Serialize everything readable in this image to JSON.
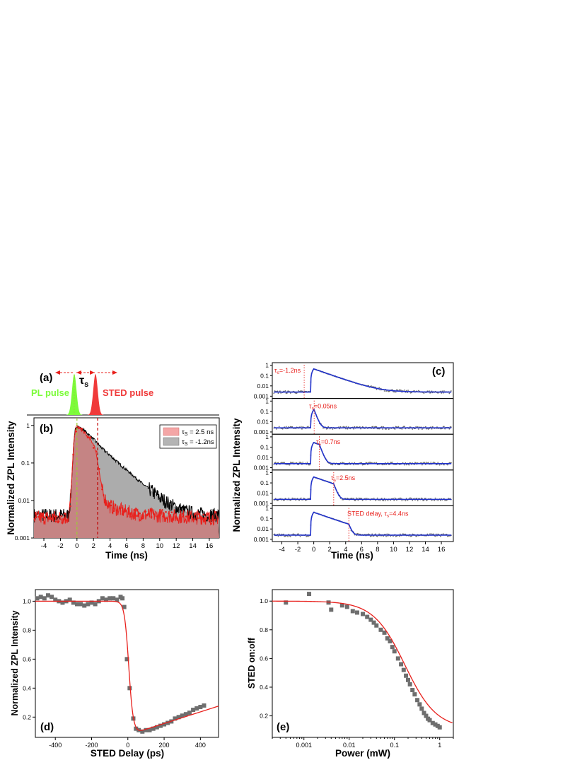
{
  "panel_labels": {
    "a": "(a)",
    "b": "(b)",
    "c": "(c)",
    "d": "(d)",
    "e": "(e)"
  },
  "pulse_diagram": {
    "pl_label": "PL pulse",
    "sted_label": "STED pulse",
    "tau_main": "τ",
    "tau_sub": "s",
    "pl_color": "#7CFC3A",
    "sted_color": "#F03A3A"
  },
  "axis_labels": {
    "b_y": "Normalized ZPL Intensity",
    "b_x": "Time (ns)",
    "c_y": "Normalized ZPL Intensity",
    "c_x": "Time (ns)",
    "d_y": "Normalized ZPL Intensity",
    "d_x": "STED Delay  (ps)",
    "e_y": "STED on:off",
    "e_x": "Power (mW)"
  },
  "legend_b": [
    {
      "main": "τ",
      "sub": "S",
      "rest": " = 2.5 ns",
      "color": "#F4A6A6"
    },
    {
      "main": "τ",
      "sub": "S",
      "rest": " = -1.2ns",
      "color": "#B4B4B4"
    }
  ],
  "c_annotations": [
    {
      "pre": "",
      "main": "τ",
      "sub": "s",
      "rest": "=-1.2ns"
    },
    {
      "pre": "",
      "main": "τ",
      "sub": "s",
      "rest": "=0.05ns"
    },
    {
      "pre": "",
      "main": "τ",
      "sub": "s",
      "rest": "=0.7ns"
    },
    {
      "pre": "",
      "main": "τ",
      "sub": "s",
      "rest": "=2.5ns"
    },
    {
      "pre": "STED delay,  ",
      "main": "τ",
      "sub": "s",
      "rest": "=4.4ns"
    }
  ],
  "colors": {
    "red": "#E8201C",
    "black": "#000000",
    "blue": "#2233CC",
    "grey_points": "#6E6E6E",
    "red_fill": "#C88080",
    "grey_fill": "#9E9E9E",
    "annotation_red": "#E8201C"
  },
  "chart_data": [
    {
      "id": "b",
      "type": "area",
      "title": "",
      "xlabel": "Time (ns)",
      "ylabel": "Normalized ZPL Intensity",
      "xlim": [
        -5.2,
        17.2
      ],
      "ylim": [
        0.001,
        1.6
      ],
      "yscale": "log",
      "xticks": [
        -4,
        -2,
        0,
        2,
        4,
        6,
        8,
        10,
        12,
        14,
        16
      ],
      "yticks": [
        0.001,
        0.01,
        0.1,
        1
      ],
      "ytick_labels": [
        "0.001",
        "0.01",
        "0.1",
        "1"
      ],
      "legend_position": "top-right",
      "vlines": [
        {
          "x": 0,
          "style": "dashed",
          "color": "#9acd32"
        },
        {
          "x": 2.5,
          "style": "dashed",
          "color": "#c00000"
        }
      ],
      "series": [
        {
          "name": "τS = -1.2ns",
          "x": [
            -5,
            -1,
            -0.8,
            -0.6,
            -0.4,
            -0.2,
            0,
            0.3,
            0.6,
            1,
            1.5,
            2,
            2.5,
            3,
            4,
            5,
            6,
            7,
            8,
            9,
            10,
            11,
            12,
            13,
            14,
            15,
            16,
            17
          ],
          "y": [
            0.004,
            0.004,
            0.01,
            0.05,
            0.3,
            0.8,
            0.95,
            0.88,
            0.8,
            0.7,
            0.55,
            0.43,
            0.33,
            0.25,
            0.16,
            0.1,
            0.065,
            0.042,
            0.027,
            0.018,
            0.012,
            0.0085,
            0.0065,
            0.0052,
            0.0046,
            0.0043,
            0.0041,
            0.004
          ]
        },
        {
          "name": "τS = 2.5 ns",
          "x": [
            -5,
            -1,
            -0.8,
            -0.6,
            -0.4,
            -0.2,
            0,
            0.3,
            0.6,
            1,
            1.5,
            2,
            2.3,
            2.6,
            2.9,
            3.2,
            3.6,
            4,
            5,
            6,
            7,
            8,
            10,
            12,
            14,
            16,
            17
          ],
          "y": [
            0.0035,
            0.0035,
            0.009,
            0.05,
            0.3,
            0.8,
            0.95,
            0.85,
            0.75,
            0.6,
            0.45,
            0.32,
            0.2,
            0.08,
            0.03,
            0.014,
            0.009,
            0.007,
            0.0058,
            0.005,
            0.0045,
            0.0042,
            0.004,
            0.0038,
            0.0036,
            0.0035,
            0.0035
          ]
        }
      ]
    },
    {
      "id": "c",
      "type": "line",
      "title": "",
      "xlabel": "Time (ns)",
      "ylabel": "Normalized ZPL Intensity",
      "xlim": [
        -5.2,
        17.5
      ],
      "ylim": [
        0.0006,
        1.8
      ],
      "yscale": "log",
      "xticks": [
        -4,
        -2,
        0,
        2,
        4,
        6,
        8,
        10,
        12,
        14,
        16
      ],
      "yticks": [
        0.001,
        0.01,
        0.1,
        1
      ],
      "ytick_labels": [
        "0.001",
        "0.01",
        "0.1",
        "1"
      ],
      "stack": [
        {
          "tau_s": -1.2,
          "peak": 0.45,
          "baseline": 0.0025,
          "decay_ns": 1.6
        },
        {
          "tau_s": 0.05,
          "peak": 0.14,
          "baseline": 0.0025,
          "decay_ns": 1.6
        },
        {
          "tau_s": 0.7,
          "peak": 0.28,
          "baseline": 0.0025,
          "decay_ns": 1.6
        },
        {
          "tau_s": 2.5,
          "peak": 0.38,
          "baseline": 0.0025,
          "decay_ns": 1.6
        },
        {
          "tau_s": 4.4,
          "peak": 0.42,
          "baseline": 0.0025,
          "decay_ns": 1.6
        }
      ]
    },
    {
      "id": "d",
      "type": "scatter",
      "title": "",
      "xlabel": "STED Delay  (ps)",
      "ylabel": "Normalized ZPL Intensity",
      "xlim": [
        -510,
        500
      ],
      "ylim": [
        0.06,
        1.08
      ],
      "xticks": [
        -400,
        -200,
        0,
        200,
        400
      ],
      "yticks": [
        0.2,
        0.4,
        0.6,
        0.8,
        1.0
      ],
      "ytick_labels": [
        "0.2",
        "0.4",
        "0.6",
        "0.8",
        "1.0"
      ],
      "points": [
        [
          -500,
          1.02
        ],
        [
          -480,
          1.03
        ],
        [
          -460,
          1.02
        ],
        [
          -440,
          1.04
        ],
        [
          -420,
          1.03
        ],
        [
          -400,
          1.01
        ],
        [
          -380,
          1.0
        ],
        [
          -360,
          0.99
        ],
        [
          -340,
          1.0
        ],
        [
          -320,
          1.01
        ],
        [
          -300,
          0.99
        ],
        [
          -280,
          0.98
        ],
        [
          -260,
          0.98
        ],
        [
          -240,
          0.97
        ],
        [
          -220,
          0.98
        ],
        [
          -200,
          0.99
        ],
        [
          -180,
          0.98
        ],
        [
          -160,
          1.0
        ],
        [
          -140,
          1.02
        ],
        [
          -120,
          1.01
        ],
        [
          -100,
          1.02
        ],
        [
          -80,
          1.02
        ],
        [
          -60,
          1.01
        ],
        [
          -40,
          1.03
        ],
        [
          -30,
          1.02
        ],
        [
          -20,
          0.96
        ],
        [
          -5,
          0.6
        ],
        [
          10,
          0.4
        ],
        [
          30,
          0.19
        ],
        [
          45,
          0.12
        ],
        [
          60,
          0.11
        ],
        [
          80,
          0.1
        ],
        [
          100,
          0.11
        ],
        [
          120,
          0.11
        ],
        [
          140,
          0.12
        ],
        [
          160,
          0.13
        ],
        [
          180,
          0.14
        ],
        [
          200,
          0.15
        ],
        [
          220,
          0.16
        ],
        [
          240,
          0.17
        ],
        [
          260,
          0.19
        ],
        [
          280,
          0.2
        ],
        [
          300,
          0.21
        ],
        [
          320,
          0.22
        ],
        [
          340,
          0.23
        ],
        [
          360,
          0.25
        ],
        [
          380,
          0.26
        ],
        [
          400,
          0.27
        ],
        [
          420,
          0.28
        ]
      ],
      "fit": {
        "plateau": 1.0,
        "drop_center_ps": 5,
        "drop_width_ps": 12,
        "min": 0.1,
        "slope_per_ps": 0.0004
      }
    },
    {
      "id": "e",
      "type": "scatter",
      "title": "",
      "xlabel": "Power (mW)",
      "ylabel": "STED on:off",
      "xlim": [
        0.0002,
        2
      ],
      "ylim": [
        0.05,
        1.08
      ],
      "xscale": "log",
      "xticks": [
        0.001,
        0.01,
        0.1,
        1
      ],
      "xtick_labels": [
        "0.001",
        "0.01",
        "0.1",
        "1"
      ],
      "yticks": [
        0.2,
        0.4,
        0.6,
        0.8,
        1.0
      ],
      "ytick_labels": [
        "0.2",
        "0.4",
        "0.6",
        "0.8",
        "1.0"
      ],
      "points": [
        [
          0.0004,
          0.99
        ],
        [
          0.0013,
          1.05
        ],
        [
          0.0035,
          0.99
        ],
        [
          0.004,
          0.94
        ],
        [
          0.007,
          0.97
        ],
        [
          0.009,
          0.96
        ],
        [
          0.012,
          0.93
        ],
        [
          0.015,
          0.92
        ],
        [
          0.02,
          0.91
        ],
        [
          0.025,
          0.89
        ],
        [
          0.03,
          0.87
        ],
        [
          0.035,
          0.85
        ],
        [
          0.04,
          0.83
        ],
        [
          0.05,
          0.8
        ],
        [
          0.06,
          0.78
        ],
        [
          0.07,
          0.74
        ],
        [
          0.08,
          0.72
        ],
        [
          0.09,
          0.68
        ],
        [
          0.1,
          0.65
        ],
        [
          0.12,
          0.6
        ],
        [
          0.14,
          0.56
        ],
        [
          0.16,
          0.52
        ],
        [
          0.18,
          0.48
        ],
        [
          0.2,
          0.45
        ],
        [
          0.22,
          0.42
        ],
        [
          0.25,
          0.38
        ],
        [
          0.28,
          0.35
        ],
        [
          0.32,
          0.31
        ],
        [
          0.36,
          0.28
        ],
        [
          0.4,
          0.25
        ],
        [
          0.45,
          0.22
        ],
        [
          0.5,
          0.2
        ],
        [
          0.55,
          0.18
        ],
        [
          0.6,
          0.17
        ],
        [
          0.7,
          0.15
        ],
        [
          0.8,
          0.14
        ],
        [
          0.9,
          0.13
        ],
        [
          1.0,
          0.12
        ]
      ],
      "fit": {
        "top": 1.0,
        "bottom": 0.11,
        "p_sat_mW": 0.17,
        "exponent": 1.25
      }
    }
  ]
}
